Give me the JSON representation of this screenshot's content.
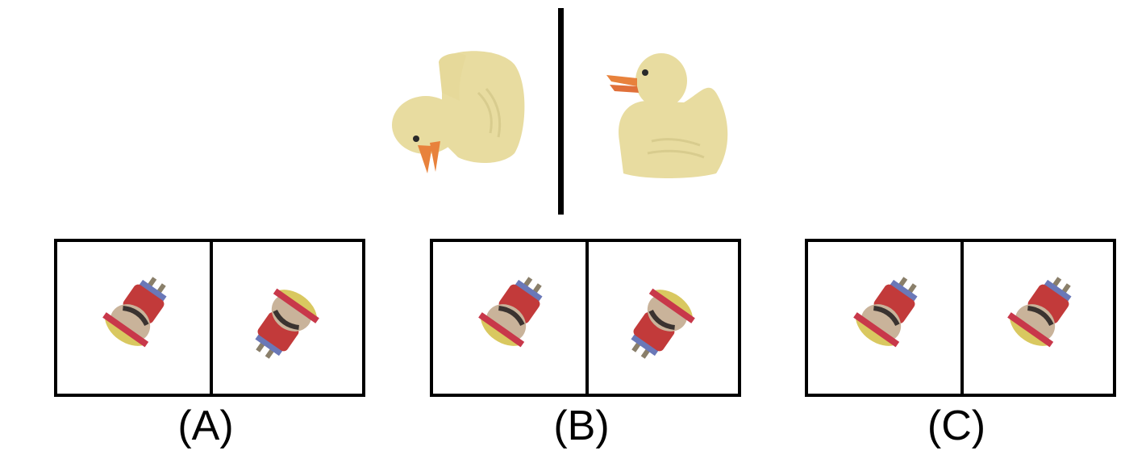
{
  "reference": {
    "left_object": "rubber-duck-rotated",
    "right_object": "rubber-duck-upright"
  },
  "options": [
    {
      "label": "(A)",
      "left_figure": "figure-rotated-head-down-left",
      "right_figure": "figure-rotated-head-up-left"
    },
    {
      "label": "(B)",
      "left_figure": "figure-rotated-head-down-left",
      "right_figure": "figure-rotated-head-up-left"
    },
    {
      "label": "(C)",
      "left_figure": "figure-rotated-head-down-left",
      "right_figure": "figure-rotated-head-down-left"
    }
  ],
  "colors": {
    "duck_body": "#e8dca0",
    "duck_beak": "#e8823c",
    "hat_yellow": "#d9c860",
    "hat_band": "#c8384a",
    "jacket_red": "#c23a3a",
    "skin": "#c9b39a",
    "hair": "#3a3330",
    "border": "#000000"
  }
}
